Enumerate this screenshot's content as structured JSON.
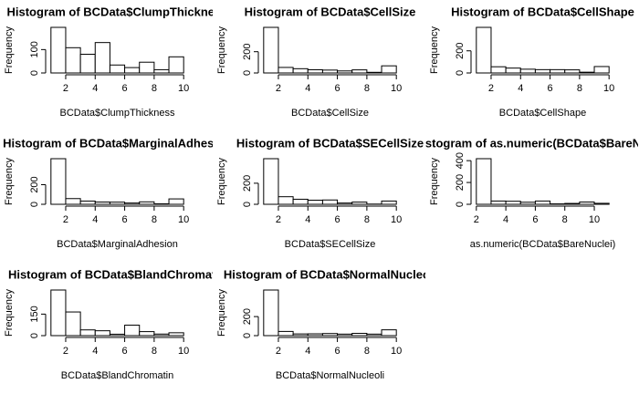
{
  "chart_data": [
    {
      "type": "histogram",
      "title": "Histogram of BCData$ClumpThickness",
      "xlabel": "BCData$ClumpThickness",
      "ylabel": "Frequency",
      "bins": [
        1,
        2,
        3,
        4,
        5,
        6,
        7,
        8,
        9,
        10
      ],
      "values": [
        195,
        108,
        80,
        130,
        34,
        23,
        46,
        14,
        69
      ],
      "xlim": [
        0.64,
        10.36
      ],
      "ylim": [
        -7.8,
        202.8
      ],
      "xticks": [
        2,
        4,
        6,
        8,
        10
      ],
      "yticks": [
        0,
        100
      ]
    },
    {
      "type": "histogram",
      "title": "Histogram of BCData$CellSize",
      "xlabel": "BCData$CellSize",
      "ylabel": "Frequency",
      "bins": [
        1,
        2,
        3,
        4,
        5,
        6,
        7,
        8,
        9,
        10
      ],
      "values": [
        429,
        52,
        40,
        30,
        27,
        19,
        29,
        6,
        67
      ],
      "xlim": [
        0.64,
        10.36
      ],
      "ylim": [
        -17.2,
        446.2
      ],
      "xticks": [
        2,
        4,
        6,
        8,
        10
      ],
      "yticks": [
        0,
        200
      ]
    },
    {
      "type": "histogram",
      "title": "Histogram of BCData$CellShape",
      "xlabel": "BCData$CellShape",
      "ylabel": "Frequency",
      "bins": [
        1,
        2,
        3,
        4,
        5,
        6,
        7,
        8,
        9,
        10
      ],
      "values": [
        412,
        56,
        44,
        34,
        30,
        30,
        28,
        7,
        58
      ],
      "xlim": [
        0.64,
        10.36
      ],
      "ylim": [
        -16.5,
        428.5
      ],
      "xticks": [
        2,
        4,
        6,
        8,
        10
      ],
      "yticks": [
        0,
        200
      ]
    },
    {
      "type": "histogram",
      "title": "Histogram of BCData$MarginalAdhesion",
      "xlabel": "BCData$MarginalAdhesion",
      "ylabel": "Frequency",
      "bins": [
        1,
        2,
        3,
        4,
        5,
        6,
        7,
        8,
        9,
        10
      ],
      "values": [
        465,
        58,
        33,
        23,
        22,
        13,
        25,
        5,
        55
      ],
      "xlim": [
        0.64,
        10.36
      ],
      "ylim": [
        -18.6,
        483.6
      ],
      "xticks": [
        2,
        4,
        6,
        8,
        10
      ],
      "yticks": [
        0,
        200
      ]
    },
    {
      "type": "histogram",
      "title": "Histogram of BCData$SECellSize",
      "xlabel": "BCData$SECellSize",
      "ylabel": "Frequency",
      "bins": [
        1,
        2,
        3,
        4,
        5,
        6,
        7,
        8,
        9,
        10
      ],
      "values": [
        433,
        72,
        48,
        39,
        41,
        12,
        21,
        2,
        31
      ],
      "xlim": [
        0.64,
        10.36
      ],
      "ylim": [
        -17.3,
        450.3
      ],
      "xticks": [
        2,
        4,
        6,
        8,
        10
      ],
      "yticks": [
        0,
        200
      ]
    },
    {
      "type": "histogram",
      "title": "Histogram of as.numeric(BCData$BareNuclei)",
      "xlabel": "as.numeric(BCData$BareNuclei)",
      "ylabel": "Frequency",
      "bins": [
        2,
        3,
        4,
        5,
        6,
        7,
        8,
        9,
        10,
        11
      ],
      "values": [
        418,
        30,
        28,
        19,
        30,
        4,
        8,
        21,
        9
      ],
      "xlim": [
        1.64,
        11.36
      ],
      "ylim": [
        -16.7,
        434.7
      ],
      "xticks": [
        2,
        4,
        6,
        8,
        10
      ],
      "yticks": [
        0,
        200,
        400
      ]
    },
    {
      "type": "histogram",
      "title": "Histogram of BCData$BlandChromatin",
      "xlabel": "BCData$BlandChromatin",
      "ylabel": "Frequency",
      "bins": [
        1,
        2,
        3,
        4,
        5,
        6,
        7,
        8,
        9,
        10
      ],
      "values": [
        318,
        165,
        40,
        34,
        10,
        73,
        28,
        11,
        20
      ],
      "xlim": [
        0.64,
        10.36
      ],
      "ylim": [
        -12.7,
        330.7
      ],
      "xticks": [
        2,
        4,
        6,
        8,
        10
      ],
      "yticks": [
        0,
        150
      ]
    },
    {
      "type": "histogram",
      "title": "Histogram of BCData$NormalNucleoli",
      "xlabel": "BCData$NormalNucleoli",
      "ylabel": "Frequency",
      "bins": [
        1,
        2,
        3,
        4,
        5,
        6,
        7,
        8,
        9,
        10
      ],
      "values": [
        479,
        44,
        18,
        19,
        22,
        16,
        24,
        16,
        61
      ],
      "xlim": [
        0.64,
        10.36
      ],
      "ylim": [
        -19.2,
        498.2
      ],
      "xticks": [
        2,
        4,
        6,
        8,
        10
      ],
      "yticks": [
        0,
        200
      ]
    }
  ]
}
